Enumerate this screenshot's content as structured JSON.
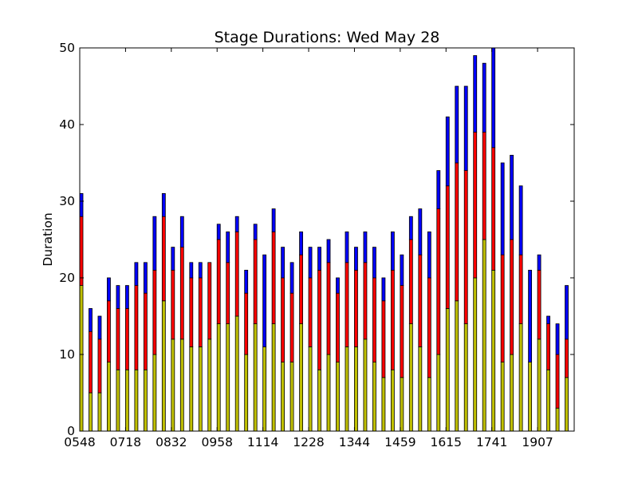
{
  "chart_data": {
    "type": "bar",
    "stacked": true,
    "title": "Stage Durations: Wed May 28",
    "xlabel": "",
    "ylabel": "Duration",
    "ylim": [
      0,
      50
    ],
    "yticks": [
      0,
      10,
      20,
      30,
      40,
      50
    ],
    "xtick_labels": [
      "0548",
      "0718",
      "0832",
      "0958",
      "1114",
      "1228",
      "1344",
      "1459",
      "1615",
      "1741",
      "1907"
    ],
    "grid": false,
    "legend": "none",
    "bar_count": 54,
    "series": [
      {
        "color": "#bfbf00",
        "values": [
          19,
          5,
          5,
          9,
          8,
          8,
          8,
          8,
          10,
          17,
          12,
          12,
          11,
          11,
          12,
          14,
          14,
          15,
          10,
          14,
          11,
          14,
          9,
          9,
          14,
          11,
          8,
          10,
          9,
          11,
          11,
          12,
          9,
          7,
          8,
          7,
          14,
          11,
          7,
          10,
          16,
          17,
          14,
          20,
          25,
          21,
          9,
          10,
          14,
          9,
          12,
          8,
          3,
          7
        ]
      },
      {
        "color": "#ff0000",
        "values": [
          9,
          8,
          7,
          8,
          8,
          8,
          11,
          10,
          11,
          11,
          9,
          12,
          9,
          9,
          10,
          11,
          8,
          11,
          8,
          11,
          0,
          12,
          11,
          9,
          9,
          9,
          13,
          12,
          9,
          11,
          10,
          10,
          11,
          10,
          13,
          12,
          11,
          12,
          13,
          19,
          16,
          18,
          20,
          19,
          14,
          16,
          14,
          15,
          9,
          0,
          9,
          6,
          7,
          5
        ]
      },
      {
        "color": "#0000ff",
        "values": [
          3,
          3,
          3,
          3,
          3,
          3,
          3,
          4,
          7,
          3,
          3,
          4,
          2,
          2,
          0,
          2,
          4,
          2,
          3,
          2,
          12,
          3,
          4,
          4,
          3,
          4,
          3,
          3,
          2,
          4,
          3,
          4,
          4,
          3,
          5,
          4,
          3,
          6,
          6,
          5,
          9,
          10,
          11,
          10,
          9,
          13,
          12,
          11,
          9,
          12,
          2,
          1,
          4,
          7
        ]
      }
    ]
  }
}
